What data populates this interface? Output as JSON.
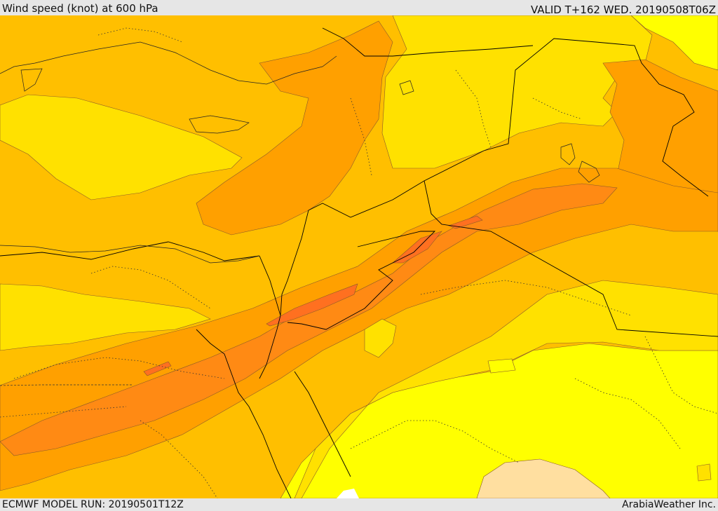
{
  "header": {
    "title": "Wind speed (knot) at 600 hPa",
    "valid": "VALID T+162 WED. 20190508T06Z"
  },
  "footer": {
    "model_run": "ECMWF MODEL RUN: 20190501T12Z",
    "credit": "ArabiaWeather Inc."
  },
  "colors": {
    "bright_yellow": "#ffff00",
    "yellow": "#ffe100",
    "light_orange": "#ffbf00",
    "orange": "#ffa000",
    "dark_orange": "#ff8a14",
    "deep_orange": "#ff7020",
    "pale_tan": "#ffdfa0",
    "contour": "#8a5a2a",
    "border": "#000000"
  }
}
